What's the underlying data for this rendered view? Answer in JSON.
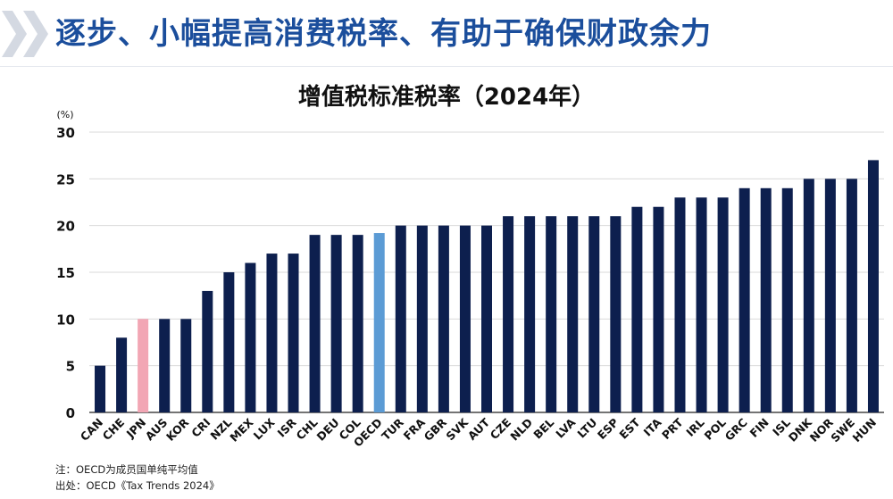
{
  "headline": "逐步、小幅提高消费税率、有助于确保财政余力",
  "colors": {
    "headline": "#1b4e9c",
    "bar": "#0d1f4e",
    "japan": "#f2a6b4",
    "oecd": "#5b9bd5"
  },
  "chart_data": {
    "type": "bar",
    "title": "增值税标准税率（2024年）",
    "ylabel": "(%)",
    "ylim": [
      0,
      30
    ],
    "yticks": [
      0,
      5,
      10,
      15,
      20,
      25,
      30
    ],
    "grid": true,
    "categories": [
      "CAN",
      "CHE",
      "JPN",
      "AUS",
      "KOR",
      "CRI",
      "NZL",
      "MEX",
      "LUX",
      "ISR",
      "CHL",
      "DEU",
      "COL",
      "OECD",
      "TUR",
      "FRA",
      "GBR",
      "SVK",
      "AUT",
      "CZE",
      "NLD",
      "BEL",
      "LVA",
      "LTU",
      "ESP",
      "EST",
      "ITA",
      "PRT",
      "IRL",
      "POL",
      "GRC",
      "FIN",
      "ISL",
      "DNK",
      "NOR",
      "SWE",
      "HUN"
    ],
    "values": [
      5,
      8,
      10,
      10,
      10,
      13,
      15,
      16,
      17,
      17,
      19,
      19,
      19,
      19.2,
      20,
      20,
      20,
      20,
      20,
      21,
      21,
      21,
      21,
      21,
      21,
      22,
      22,
      23,
      23,
      23,
      24,
      24,
      24,
      25,
      25,
      25,
      27
    ],
    "highlight": {
      "JPN": "japan",
      "OECD": "oecd"
    }
  },
  "notes": {
    "note": "注：OECD为成员国单纯平均值",
    "source": "出处：OECD《Tax Trends 2024》"
  }
}
